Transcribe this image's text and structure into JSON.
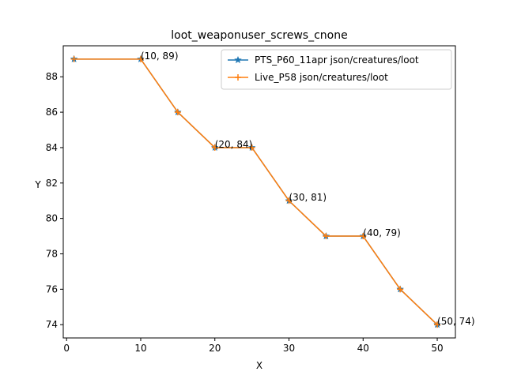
{
  "chart_data": {
    "type": "line",
    "title": "loot_weaponuser_screws_cnone",
    "xlabel": "X",
    "ylabel": "Y",
    "xlim": [
      -0.45,
      52.45
    ],
    "ylim": [
      73.25,
      89.75
    ],
    "xticks": [
      0,
      10,
      20,
      30,
      40,
      50
    ],
    "yticks": [
      74,
      76,
      78,
      80,
      82,
      84,
      86,
      88
    ],
    "grid": false,
    "legend_position": "top-right",
    "series": [
      {
        "name": "PTS_P60_11apr json/creatures/loot",
        "color": "#1f77b4",
        "marker": "star",
        "x": [
          1,
          10,
          15,
          20,
          25,
          30,
          35,
          40,
          45,
          50
        ],
        "y": [
          89,
          89,
          86,
          84,
          84,
          81,
          79,
          79,
          76,
          74
        ]
      },
      {
        "name": "Live_P58 json/creatures/loot",
        "color": "#ff7f0e",
        "marker": "plus",
        "x": [
          1,
          10,
          15,
          20,
          25,
          30,
          35,
          40,
          45,
          50
        ],
        "y": [
          89,
          89,
          86,
          84,
          84,
          81,
          79,
          79,
          76,
          74
        ]
      }
    ],
    "annotations": [
      {
        "x": 10,
        "y": 89,
        "text": "(10, 89)"
      },
      {
        "x": 20,
        "y": 84,
        "text": "(20, 84)"
      },
      {
        "x": 30,
        "y": 81,
        "text": "(30, 81)"
      },
      {
        "x": 40,
        "y": 79,
        "text": "(40, 79)"
      },
      {
        "x": 50,
        "y": 74,
        "text": "(50, 74)"
      }
    ]
  }
}
